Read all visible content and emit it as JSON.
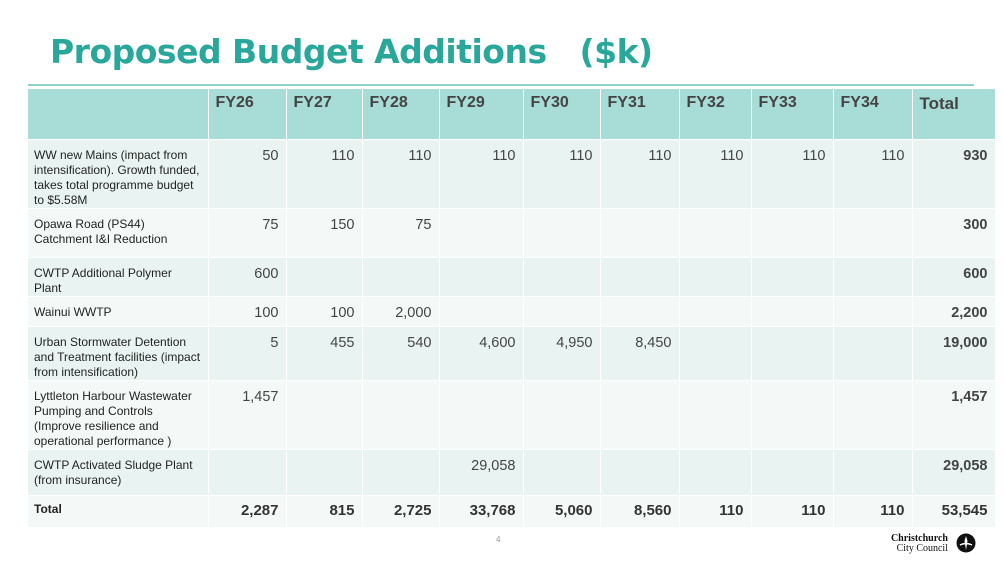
{
  "title": "Proposed Budget Additions   ($k)",
  "columns": [
    "",
    "FY26",
    "FY27",
    "FY28",
    "FY29",
    "FY30",
    "FY31",
    "FY32",
    "FY33",
    "FY34",
    "Total"
  ],
  "rows": [
    {
      "label": "WW new Mains  (impact from intensification). Growth funded, takes total programme budget to $5.58M",
      "values": [
        "50",
        "110",
        "110",
        "110",
        "110",
        "110",
        "110",
        "110",
        "110",
        "930"
      ]
    },
    {
      "label": "Opawa Road (PS44) Catchment I&I Reduction",
      "values": [
        "75",
        "150",
        "75",
        "",
        "",
        "",
        "",
        "",
        "",
        "300"
      ]
    },
    {
      "label": "CWTP  Additional Polymer Plant",
      "values": [
        "600",
        "",
        "",
        "",
        "",
        "",
        "",
        "",
        "",
        "600"
      ]
    },
    {
      "label": "Wainui WWTP",
      "values": [
        "100",
        "100",
        "2,000",
        "",
        "",
        "",
        "",
        "",
        "",
        "2,200"
      ]
    },
    {
      "label": "Urban Stormwater Detention and Treatment facilities (impact from intensification)",
      "values": [
        "5",
        "455",
        "540",
        "4,600",
        "4,950",
        "8,450",
        "",
        "",
        "",
        "19,000"
      ]
    },
    {
      "label": "Lyttleton Harbour Wastewater Pumping and Controls (Improve resilience and operational performance )",
      "values": [
        "1,457",
        "",
        "",
        "",
        "",
        "",
        "",
        "",
        "",
        "1,457"
      ]
    },
    {
      "label": "CWTP Activated Sludge Plant (from insurance)",
      "values": [
        "",
        "",
        "",
        "29,058",
        "",
        "",
        "",
        "",
        "",
        "29,058"
      ]
    }
  ],
  "total_row": {
    "label": "Total",
    "values": [
      "2,287",
      "815",
      "2,725",
      "33,768",
      "5,060",
      "8,560",
      "110",
      "110",
      "110",
      "53,545"
    ]
  },
  "page_number": "4",
  "logo": {
    "line1": "Christchurch",
    "line2": "City Council",
    "icon": "christchurch-council-emblem-icon"
  },
  "colors": {
    "title": "#2aa79b",
    "header_bg": "#a8dcd6",
    "row_bg": "#e9f4f2"
  }
}
